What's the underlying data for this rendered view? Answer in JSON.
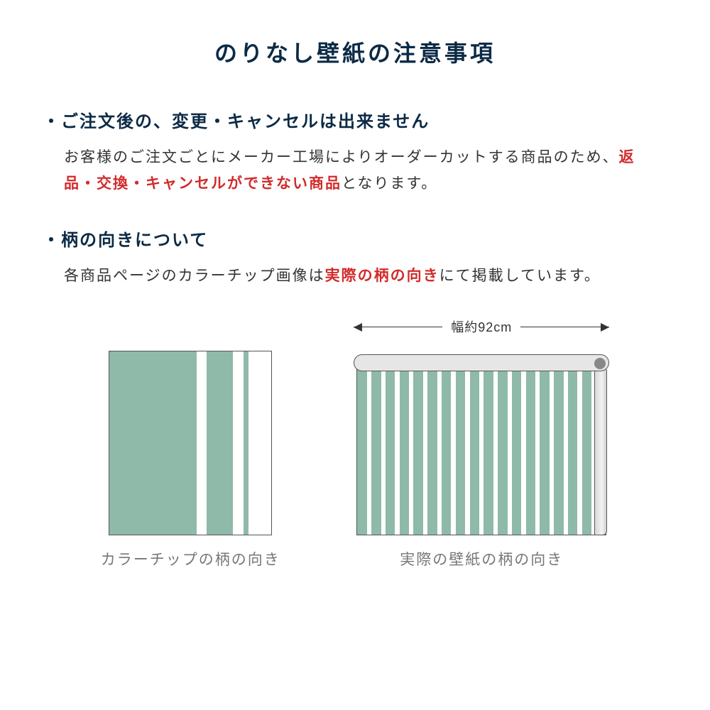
{
  "title": "のりなし壁紙の注意事項",
  "colors": {
    "title": "#0b2a45",
    "text": "#333333",
    "emphasis": "#d22b2b",
    "caption": "#777777",
    "sage": "#8fb9a8",
    "white": "#ffffff",
    "outline": "#555555"
  },
  "section1": {
    "bullet": "・ご注文後の、変更・キャンセルは出来ません",
    "body_pre": "お客様のご注文ごとにメーカー工場によりオーダーカットする商品のため、",
    "body_red": "返品・交換・キャンセルができない商品",
    "body_post": "となります。"
  },
  "section2": {
    "bullet": "・柄の向きについて",
    "body_pre": "各商品ページのカラーチップ画像は",
    "body_red": "実際の柄の向き",
    "body_post": "にて掲載しています。"
  },
  "figA": {
    "caption": "カラーチップの柄の向き",
    "bars": [
      {
        "w": 54,
        "c": "#8fb9a8"
      },
      {
        "w": 6,
        "c": "#ffffff"
      },
      {
        "w": 16,
        "c": "#8fb9a8"
      },
      {
        "w": 7,
        "c": "#ffffff"
      },
      {
        "w": 3,
        "c": "#8fb9a8"
      },
      {
        "w": 14,
        "c": "#ffffff"
      }
    ]
  },
  "figB": {
    "caption": "実際の壁紙の柄の向き",
    "width_label": "幅約92cm",
    "stripes": [
      {
        "w": 3.2,
        "c": "#8fb9a8"
      },
      {
        "w": 1.5,
        "c": "#ffffff"
      },
      {
        "w": 3.2,
        "c": "#8fb9a8"
      },
      {
        "w": 1.5,
        "c": "#ffffff"
      },
      {
        "w": 3.2,
        "c": "#8fb9a8"
      },
      {
        "w": 1.5,
        "c": "#ffffff"
      },
      {
        "w": 3.2,
        "c": "#8fb9a8"
      },
      {
        "w": 1.5,
        "c": "#ffffff"
      },
      {
        "w": 3.2,
        "c": "#8fb9a8"
      },
      {
        "w": 1.5,
        "c": "#ffffff"
      },
      {
        "w": 3.2,
        "c": "#8fb9a8"
      },
      {
        "w": 1.5,
        "c": "#ffffff"
      },
      {
        "w": 3.2,
        "c": "#8fb9a8"
      },
      {
        "w": 1.5,
        "c": "#ffffff"
      },
      {
        "w": 3.2,
        "c": "#8fb9a8"
      },
      {
        "w": 1.5,
        "c": "#ffffff"
      },
      {
        "w": 3.2,
        "c": "#8fb9a8"
      },
      {
        "w": 1.5,
        "c": "#ffffff"
      },
      {
        "w": 3.2,
        "c": "#8fb9a8"
      },
      {
        "w": 1.5,
        "c": "#ffffff"
      },
      {
        "w": 3.2,
        "c": "#8fb9a8"
      },
      {
        "w": 1.5,
        "c": "#ffffff"
      },
      {
        "w": 3.2,
        "c": "#8fb9a8"
      },
      {
        "w": 1.5,
        "c": "#ffffff"
      },
      {
        "w": 3.2,
        "c": "#8fb9a8"
      },
      {
        "w": 1.5,
        "c": "#ffffff"
      },
      {
        "w": 3.2,
        "c": "#8fb9a8"
      },
      {
        "w": 1.5,
        "c": "#ffffff"
      },
      {
        "w": 3.2,
        "c": "#8fb9a8"
      },
      {
        "w": 1.5,
        "c": "#ffffff"
      },
      {
        "w": 3.2,
        "c": "#8fb9a8"
      },
      {
        "w": 1.5,
        "c": "#ffffff"
      },
      {
        "w": 3.2,
        "c": "#8fb9a8"
      },
      {
        "w": 1.5,
        "c": "#ffffff"
      },
      {
        "w": 3.2,
        "c": "#8fb9a8"
      }
    ]
  }
}
